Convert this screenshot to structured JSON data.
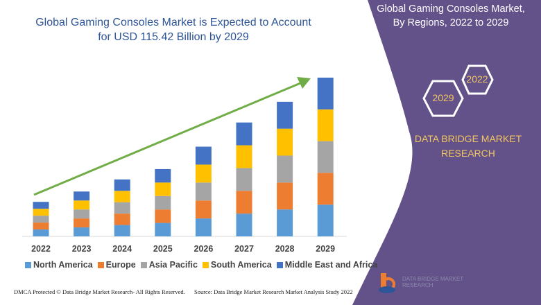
{
  "title_line1": "Global Gaming Consoles Market is Expected to Account",
  "title_line2": "for USD 115.42 Billion by 2029",
  "panel": {
    "title_line1": "Global Gaming Consoles Market,",
    "title_line2": "By Regions, 2022 to 2029",
    "hex_year_1": "2022",
    "hex_year_2": "2029",
    "brand_line1": "DATA BRIDGE MARKET",
    "brand_line2": "RESEARCH",
    "logo_text": "DATA BRIDGE MARKET RESEARCH",
    "color": "#63518a"
  },
  "footer": {
    "copyright": "DMCA Protected © Data Bridge Market Research- All Rights Reserved.",
    "source": "Source: Data Bridge Market Research Market Analysis Study 2022"
  },
  "chart_data": {
    "type": "bar",
    "stacked": true,
    "categories": [
      "2022",
      "2023",
      "2024",
      "2025",
      "2026",
      "2027",
      "2028",
      "2029"
    ],
    "series": [
      {
        "name": "North America",
        "color": "#5b9bd5",
        "values": [
          10,
          13,
          16.5,
          19.5,
          26,
          33,
          39,
          46
        ]
      },
      {
        "name": "Europe",
        "color": "#ed7d31",
        "values": [
          10,
          13,
          16.5,
          19.5,
          26,
          33,
          39,
          46
        ]
      },
      {
        "name": "Asia Pacific",
        "color": "#a5a5a5",
        "values": [
          10,
          13,
          16.5,
          19.5,
          26,
          33,
          39,
          46
        ]
      },
      {
        "name": "South America",
        "color": "#ffc000",
        "values": [
          10,
          13,
          16.5,
          19.5,
          26,
          33,
          39,
          46
        ]
      },
      {
        "name": "Middle East and Africa",
        "color": "#4472c4",
        "values": [
          10,
          13,
          16.5,
          19.5,
          26,
          33,
          39,
          46
        ]
      }
    ],
    "value_axis_shown": false,
    "grid": false,
    "legend_placement": "bottom",
    "trend_arrow_color": "#70ad47"
  }
}
